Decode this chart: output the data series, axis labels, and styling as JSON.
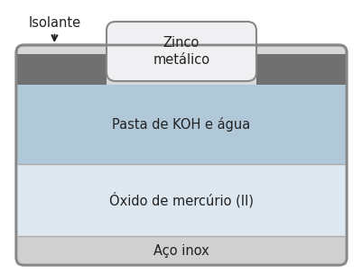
{
  "fig_width": 4.02,
  "fig_height": 3.04,
  "dpi": 100,
  "bg_color": "#ffffff",
  "isolante_label": "Isolante",
  "zinc_label": "Zinco\nmetálico",
  "paste_label": "Pasta de KOH e água",
  "oxide_label": "Óxido de mercúrio (II)",
  "inox_label": "Aço inox",
  "label_fontsize": 10.5,
  "isolante_fontsize": 10.5,
  "colors": {
    "outer_bg": "#d8d8d8",
    "outer_border": "#888888",
    "gray_insulator": "#707070",
    "zinc_fill": "#f0f0f2",
    "paste_fill": "#b0c8d8",
    "oxide_fill": "#dde8f0",
    "inox_fill": "#d0d0d0",
    "text": "#222222",
    "border": "#888888"
  }
}
